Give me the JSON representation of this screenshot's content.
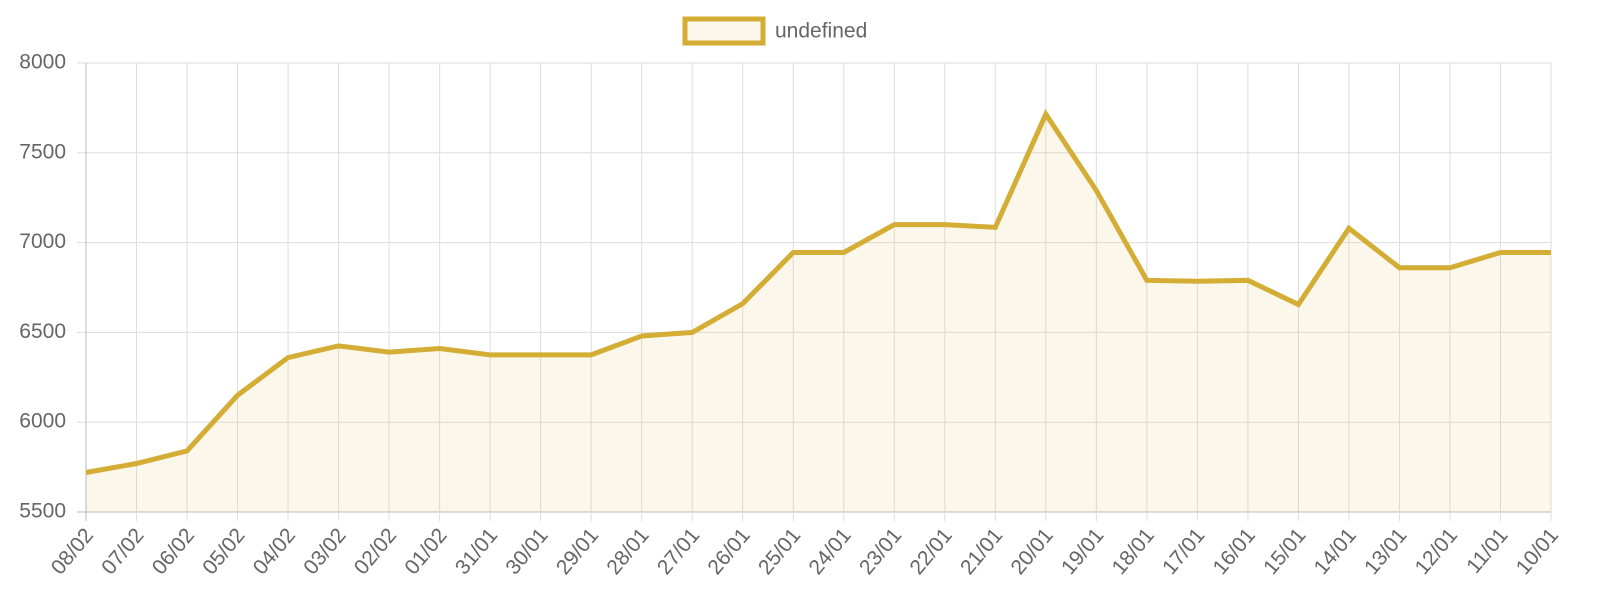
{
  "chart_data": {
    "type": "line",
    "categories": [
      "08/02",
      "07/02",
      "06/02",
      "05/02",
      "04/02",
      "03/02",
      "02/02",
      "01/02",
      "31/01",
      "30/01",
      "29/01",
      "28/01",
      "27/01",
      "26/01",
      "25/01",
      "24/01",
      "23/01",
      "22/01",
      "21/01",
      "20/01",
      "19/01",
      "18/01",
      "17/01",
      "16/01",
      "15/01",
      "14/01",
      "13/01",
      "12/01",
      "11/01",
      "10/01"
    ],
    "series": [
      {
        "name": "undefined",
        "color": "#d4ad35",
        "values": [
          5720,
          5770,
          5840,
          6150,
          6360,
          6425,
          6390,
          6410,
          6375,
          6375,
          6375,
          6480,
          6500,
          6660,
          6945,
          6945,
          7100,
          7100,
          7085,
          7715,
          7290,
          6790,
          6785,
          6790,
          6655,
          7080,
          6860,
          6860,
          6945,
          6945
        ]
      }
    ],
    "ylim": [
      5500,
      8000
    ],
    "yticks": [
      5500,
      6000,
      6500,
      7000,
      7500,
      8000
    ],
    "grid": true,
    "legend": "top",
    "fill": true
  }
}
